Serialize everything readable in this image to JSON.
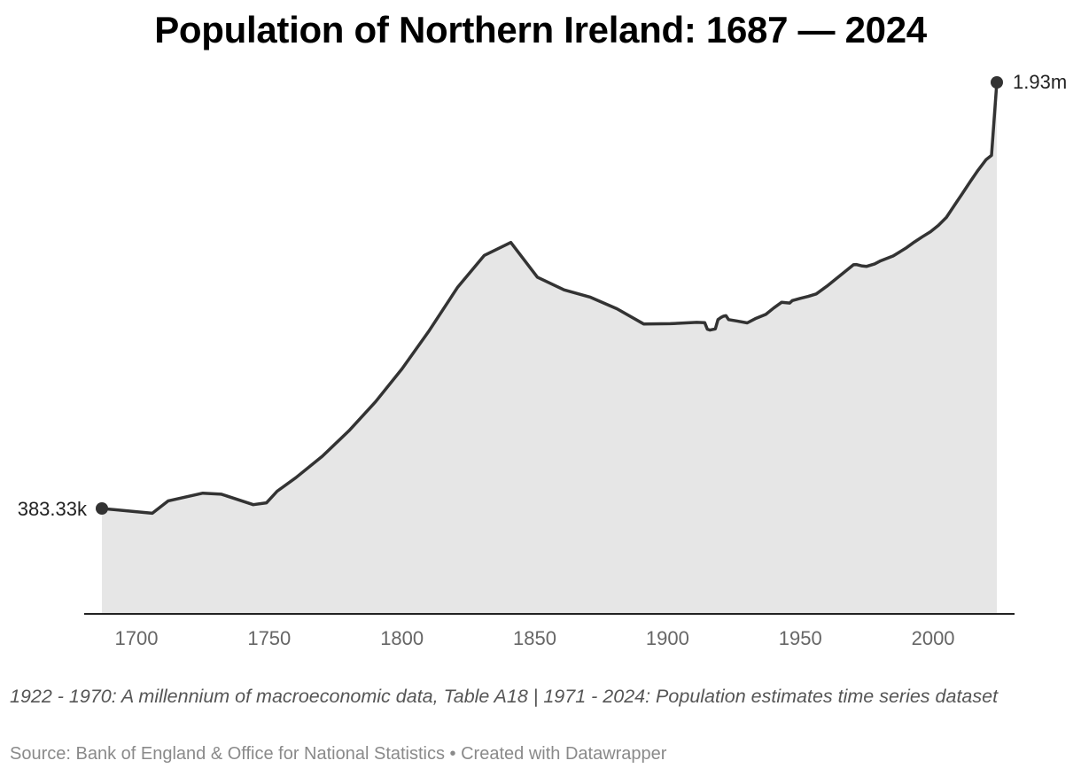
{
  "chart_data": {
    "type": "area",
    "title": "Population of Northern Ireland: 1687 — 2024",
    "xlabel": "",
    "ylabel": "",
    "xlim": [
      1687,
      2024
    ],
    "x_ticks": [
      1700,
      1750,
      1800,
      1850,
      1900,
      1950,
      2000
    ],
    "grid": false,
    "colors": {
      "line": "#333333",
      "fill": "#e6e6e6",
      "axis": "#222222"
    },
    "series": [
      {
        "x": [
          1687,
          1706,
          1712,
          1725,
          1732,
          1744,
          1749,
          1753,
          1760,
          1770,
          1780,
          1790,
          1800,
          1810,
          1821,
          1831,
          1841,
          1851,
          1861,
          1871,
          1881,
          1891,
          1901,
          1911,
          1914,
          1915,
          1916,
          1918,
          1919,
          1920,
          1921,
          1922,
          1923,
          1926,
          1930,
          1933,
          1937,
          1940,
          1943,
          1946,
          1947,
          1950,
          1953,
          1956,
          1960,
          1965,
          1970,
          1971,
          1973,
          1975,
          1978,
          1980,
          1985,
          1990,
          1993,
          1996,
          1999,
          2002,
          2005,
          2008,
          2011,
          2014,
          2017,
          2020,
          2022,
          2024
        ],
        "values": [
          383330,
          366000,
          411000,
          439000,
          435000,
          397000,
          404000,
          446000,
          495000,
          573000,
          665000,
          770000,
          890000,
          1025000,
          1187000,
          1302000,
          1349000,
          1223000,
          1177000,
          1150000,
          1108000,
          1053000,
          1054000,
          1059000,
          1058000,
          1034000,
          1031000,
          1035000,
          1069000,
          1076000,
          1081000,
          1083000,
          1069000,
          1064000,
          1057000,
          1072000,
          1088000,
          1111000,
          1132000,
          1129000,
          1138000,
          1146000,
          1153000,
          1162000,
          1190000,
          1229000,
          1268000,
          1269000,
          1264000,
          1262000,
          1271000,
          1281000,
          1300000,
          1330000,
          1351000,
          1370000,
          1388000,
          1411000,
          1440000,
          1483000,
          1526000,
          1570000,
          1612000,
          1650000,
          1665000,
          1930000
        ]
      }
    ],
    "start_label": "383.33k",
    "end_label": "1.93m"
  },
  "notes": "1922 - 1970: A millennium of macroeconomic data, Table A18 | 1971 - 2024: Population estimates time series dataset",
  "footer": "Source: Bank of England & Office for National Statistics • Created with Datawrapper"
}
